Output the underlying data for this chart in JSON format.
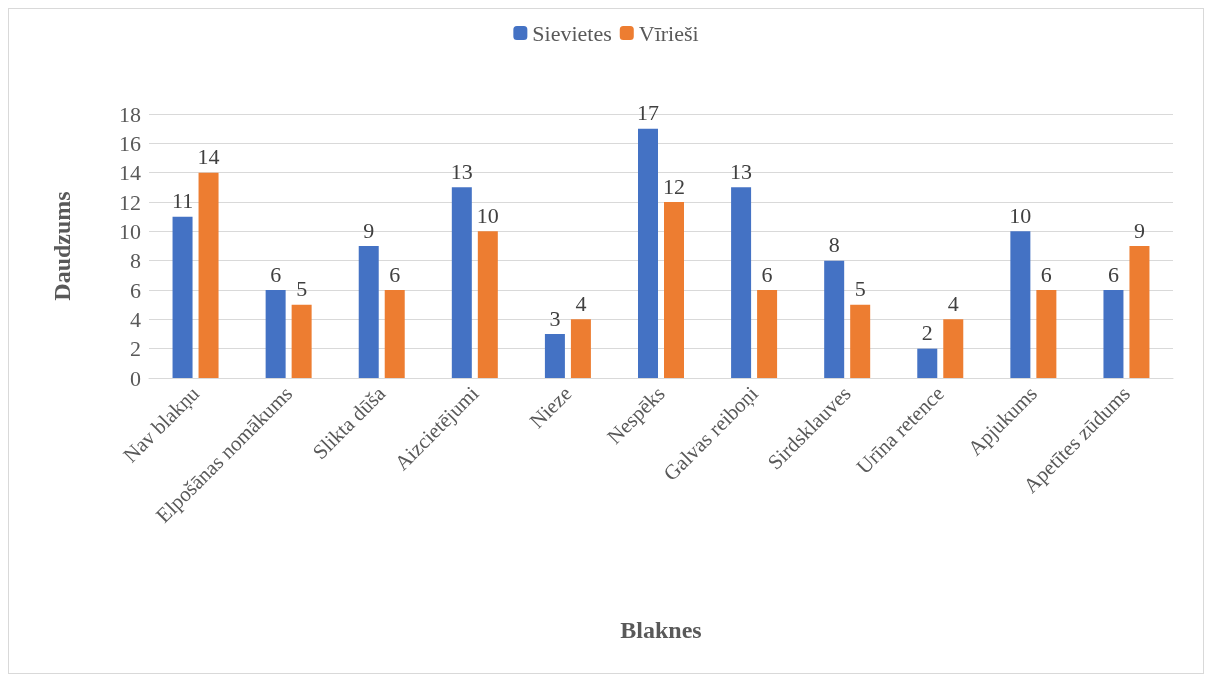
{
  "chart_data": {
    "type": "bar",
    "xlabel": "Blaknes",
    "ylabel": "Daudzums",
    "categories": [
      "Nav blakņu",
      "Elpošānas nomākums",
      "Slikta dūša",
      "Aizcietējumi",
      "Nieze",
      "Nespēks",
      "Galvas reiboņi",
      "Sirdsklauves",
      "Urīna retence",
      "Apjukums",
      "Apetītes zūdums"
    ],
    "series": [
      {
        "name": "Sievietes",
        "color": "#4472c4",
        "values": [
          11,
          6,
          9,
          13,
          3,
          17,
          13,
          8,
          2,
          10,
          6
        ]
      },
      {
        "name": "Vīrieši",
        "color": "#ed7d31",
        "values": [
          14,
          5,
          6,
          10,
          4,
          12,
          6,
          5,
          4,
          6,
          9
        ]
      }
    ],
    "ylim": [
      0,
      18
    ],
    "yticks": [
      0,
      2,
      4,
      6,
      8,
      10,
      12,
      14,
      16,
      18
    ],
    "grid": "y",
    "legend": "top",
    "data_labels": true
  }
}
